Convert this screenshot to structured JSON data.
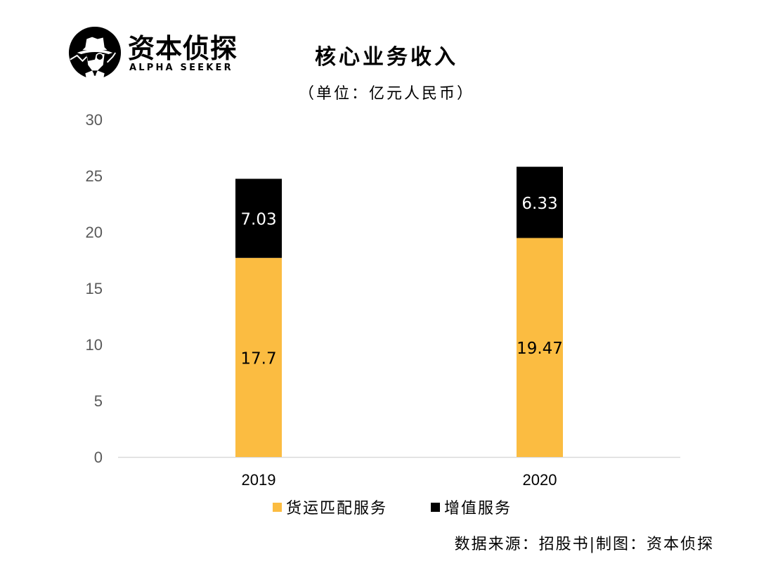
{
  "logo": {
    "name_cn": "资本侦探",
    "name_en": "ALPHA SEEKER"
  },
  "chart_data": {
    "type": "bar",
    "stacked": true,
    "title": "核心业务收入",
    "subtitle": "（单位：亿元人民币）",
    "categories": [
      "2019",
      "2020"
    ],
    "series": [
      {
        "name": "货运匹配服务",
        "values": [
          17.7,
          19.47
        ],
        "color": "#FBBC41",
        "label_color": "#000000",
        "labels": [
          "17.7",
          "19.47"
        ]
      },
      {
        "name": "增值服务",
        "values": [
          7.03,
          6.33
        ],
        "color": "#000000",
        "label_color": "#FFFFFF",
        "labels": [
          "7.03",
          "6.33"
        ]
      }
    ],
    "ylim": [
      0,
      30
    ],
    "yticks": [
      0,
      5,
      10,
      15,
      20,
      25,
      30
    ],
    "xlabel": "",
    "ylabel": "",
    "grid": false,
    "legend_position": "bottom"
  },
  "source": "数据来源：招股书|制图：资本侦探"
}
